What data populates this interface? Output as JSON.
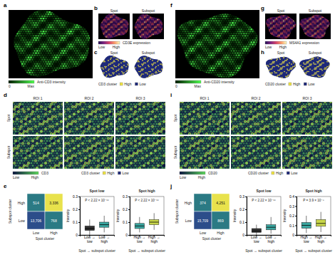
{
  "panel_letters": [
    "a",
    "b",
    "c",
    "d",
    "e",
    "f",
    "g",
    "h",
    "i",
    "j"
  ],
  "samples": [
    {
      "tissue": {
        "colorbar": {
          "title": "Anti-CD3 intensity",
          "low": "0",
          "high": "Max"
        }
      },
      "expression": {
        "titles": [
          "Spot",
          "Subspot"
        ],
        "colorbar": {
          "title": "CD3E expression",
          "low": "Low",
          "high": "High"
        }
      },
      "cluster": {
        "titles": [
          "Spot",
          "Subspot"
        ],
        "legend": {
          "title": "CD3 cluster",
          "entries": [
            "High",
            "Low"
          ]
        }
      },
      "roi": {
        "columns": [
          "ROI 1",
          "ROI 2",
          "ROI 3"
        ],
        "rows": [
          "Spot",
          "Subspot"
        ],
        "colorbar": {
          "title": "CD3",
          "low": "Low",
          "high": "High"
        },
        "legend": {
          "title": "CD3 cluster",
          "entries": [
            "High",
            "Low"
          ]
        }
      }
    },
    {
      "tissue": {
        "colorbar": {
          "title": "Anti-CD20 intensity",
          "low": "0",
          "high": "Max"
        }
      },
      "expression": {
        "titles": [
          "Spot",
          "Subspot"
        ],
        "colorbar": {
          "title": "MS4A1 expression",
          "low": "Low",
          "high": "High"
        }
      },
      "cluster": {
        "titles": [
          "Spot",
          "Subspot"
        ],
        "legend": {
          "title": "CD20 cluster",
          "entries": [
            "High",
            "Low"
          ]
        }
      },
      "roi": {
        "columns": [
          "ROI 1",
          "ROI 2",
          "ROI 3"
        ],
        "rows": [
          "Spot",
          "Subspot"
        ],
        "colorbar": {
          "title": "CD20",
          "low": "Low",
          "high": "High"
        },
        "legend": {
          "title": "CD20 cluster",
          "entries": [
            "High",
            "Low"
          ]
        }
      }
    }
  ],
  "chart_data": [
    {
      "type": "heatmap",
      "x_label": "Spot cluster",
      "y_label": "Subspot cluster",
      "x_categories": [
        "Low",
        "High"
      ],
      "y_categories": [
        "High",
        "Low"
      ],
      "values": [
        [
          514,
          3336
        ],
        [
          13706,
          768
        ]
      ],
      "value_labels": [
        [
          "514",
          "3,336"
        ],
        [
          "13,706",
          "768"
        ]
      ],
      "colors": [
        [
          "#2b7a84",
          "#e8e24c"
        ],
        [
          "#2c4d8a",
          "#2b7a84"
        ]
      ],
      "data_labels": true
    },
    {
      "type": "box",
      "title": "Spot low",
      "annotations": [
        "P < 2.22 × 10⁻¹⁶"
      ],
      "x_label": "Spot → subspot cluster",
      "y_label": "Intensity",
      "categories": [
        "Low → low",
        "Low → high"
      ],
      "boxes": [
        {
          "low": 0.0,
          "q1": 0.035,
          "median": 0.05,
          "q3": 0.07,
          "high": 0.12
        },
        {
          "low": 0.02,
          "q1": 0.06,
          "median": 0.08,
          "q3": 0.1,
          "high": 0.15
        }
      ],
      "colors": [
        "#333333",
        "#3aa6a0"
      ],
      "ylim": [
        0,
        0.3
      ],
      "yticks": [
        0,
        0.1,
        0.2,
        0.3
      ]
    },
    {
      "type": "box",
      "title": "Spot high",
      "annotations": [
        "P < 2.22 × 10⁻¹⁶"
      ],
      "x_label": "Spot → subspot cluster",
      "y_label": "Intensity",
      "categories": [
        "High → low",
        "High → high"
      ],
      "boxes": [
        {
          "low": 0.02,
          "q1": 0.05,
          "median": 0.07,
          "q3": 0.09,
          "high": 0.14
        },
        {
          "low": 0.04,
          "q1": 0.08,
          "median": 0.1,
          "q3": 0.12,
          "high": 0.17
        }
      ],
      "colors": [
        "#3aa6a0",
        "#c8d64a"
      ],
      "ylim": [
        0,
        0.3
      ],
      "yticks": [
        0,
        0.1,
        0.2,
        0.3
      ]
    },
    {
      "type": "heatmap",
      "x_label": "Spot cluster",
      "y_label": "Subspot cluster",
      "x_categories": [
        "Low",
        "High"
      ],
      "y_categories": [
        "High",
        "Low"
      ],
      "values": [
        [
          374,
          4251
        ],
        [
          15709,
          869
        ]
      ],
      "value_labels": [
        [
          "374",
          "4,251"
        ],
        [
          "15,709",
          "869"
        ]
      ],
      "colors": [
        [
          "#2b7a84",
          "#e8e24c"
        ],
        [
          "#2c4d8a",
          "#2b7a84"
        ]
      ],
      "data_labels": true
    },
    {
      "type": "box",
      "title": "Spot low",
      "annotations": [
        "P < 2.22 × 10⁻¹⁶"
      ],
      "x_label": "Spot → subspot cluster",
      "y_label": "Intensity",
      "categories": [
        "Low → low",
        "Low → high"
      ],
      "boxes": [
        {
          "low": 0.0,
          "q1": 0.02,
          "median": 0.03,
          "q3": 0.05,
          "high": 0.08
        },
        {
          "low": 0.01,
          "q1": 0.04,
          "median": 0.06,
          "q3": 0.08,
          "high": 0.14
        }
      ],
      "colors": [
        "#333333",
        "#3aa6a0"
      ],
      "ylim": [
        0,
        0.3
      ],
      "yticks": [
        0,
        0.1,
        0.2,
        0.3
      ]
    },
    {
      "type": "box",
      "title": "Spot high",
      "annotations": [
        "P = 3.9 × 10⁻⁸"
      ],
      "x_label": "Spot → subspot cluster",
      "y_label": "Intensity",
      "categories": [
        "High → low",
        "High → high"
      ],
      "boxes": [
        {
          "low": 0.02,
          "q1": 0.07,
          "median": 0.1,
          "q3": 0.13,
          "high": 0.2
        },
        {
          "low": 0.03,
          "q1": 0.09,
          "median": 0.12,
          "q3": 0.16,
          "high": 0.24
        }
      ],
      "colors": [
        "#3aa6a0",
        "#c8d64a"
      ],
      "ylim": [
        0,
        0.4
      ],
      "yticks": [
        0,
        0.1,
        0.2,
        0.3,
        0.4
      ]
    }
  ]
}
